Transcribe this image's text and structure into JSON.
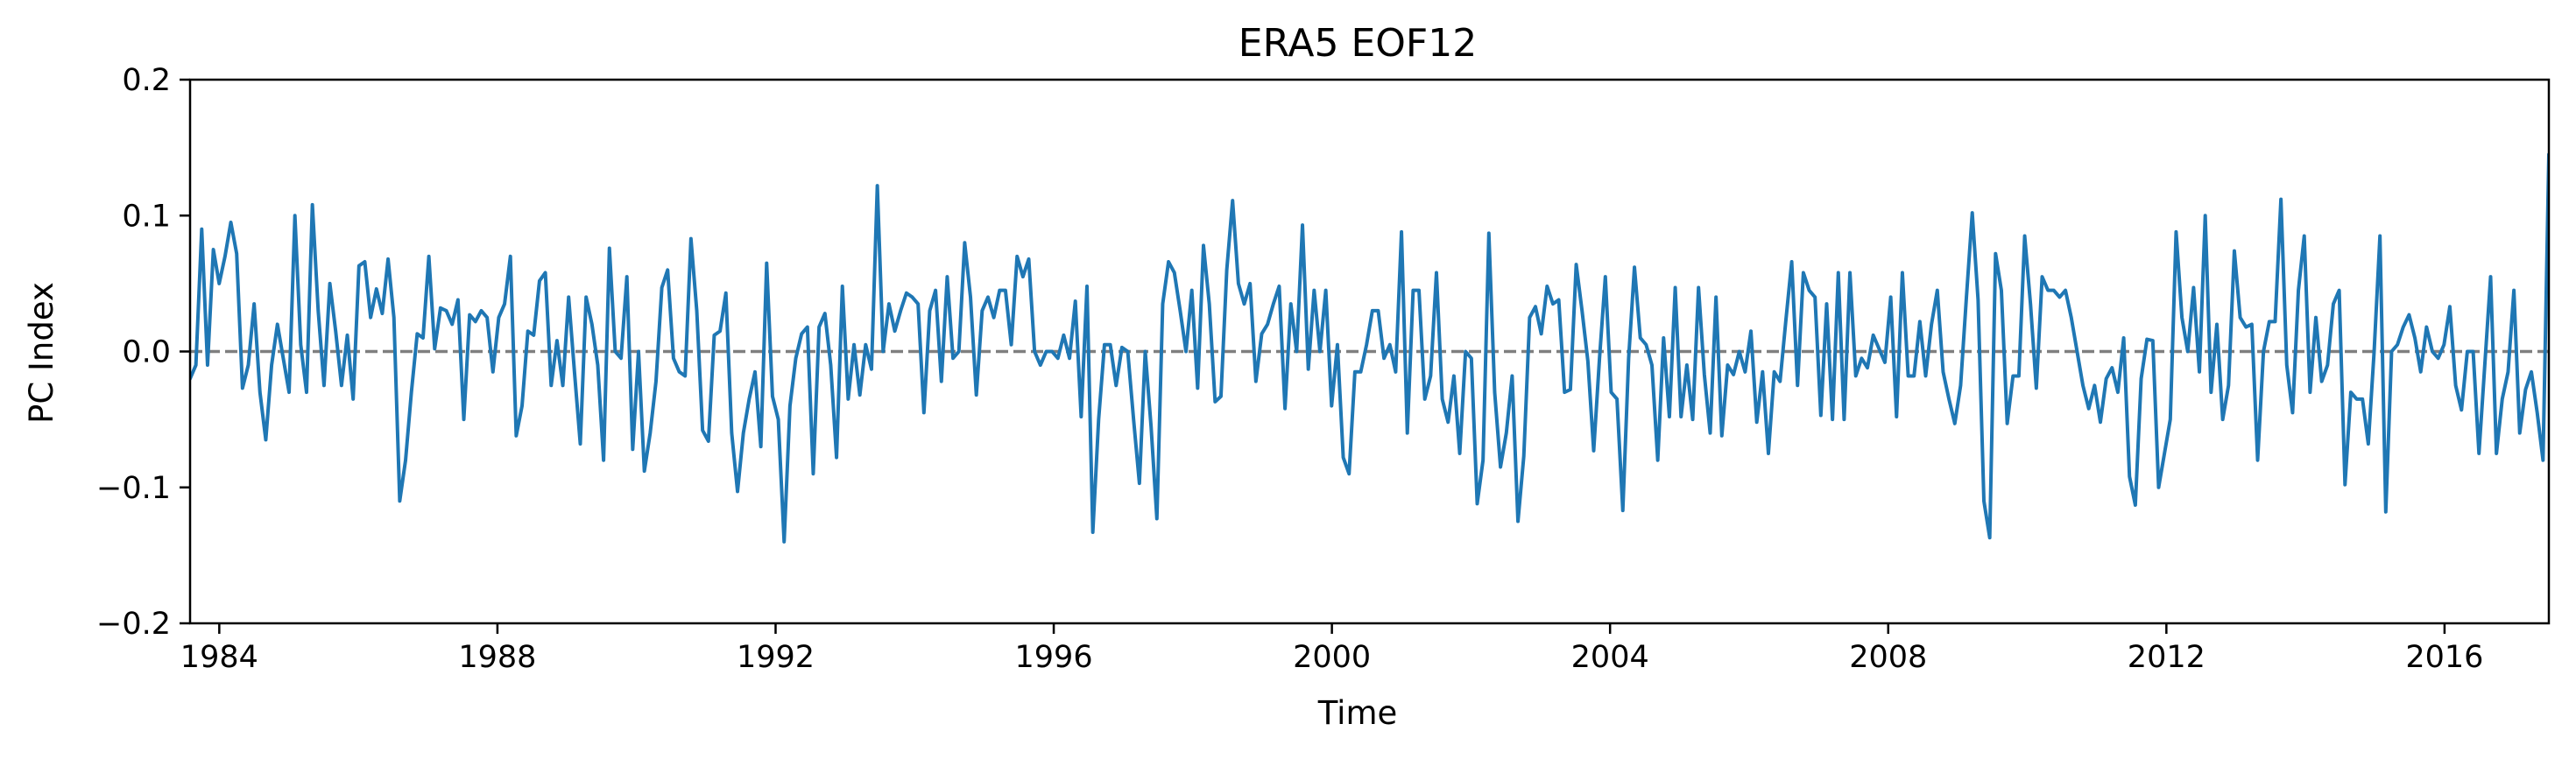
{
  "chart_data": {
    "type": "line",
    "title": "ERA5  EOF12",
    "xlabel": "Time",
    "ylabel": "PC Index",
    "xlim": [
      1983.58,
      2017.5
    ],
    "ylim": [
      -0.2,
      0.2
    ],
    "x_ticks": [
      1984,
      1988,
      1992,
      1996,
      2000,
      2004,
      2008,
      2012,
      2016
    ],
    "y_ticks": [
      -0.2,
      -0.1,
      0.0,
      0.1,
      0.2
    ],
    "x_tick_labels": [
      "1984",
      "1988",
      "1992",
      "1996",
      "2000",
      "2004",
      "2008",
      "2012",
      "2016"
    ],
    "y_tick_labels": [
      "−0.2",
      "−0.1",
      "0.0",
      "0.1",
      "0.2"
    ],
    "reference_line": {
      "y": 0.0,
      "style": "dashed",
      "color": "#7f7f7f"
    },
    "grid": false,
    "series": [
      {
        "color": "#1f77b4",
        "start": 1983.58,
        "step_years": 0.0833333,
        "values": [
          -0.02,
          -0.01,
          0.09,
          -0.01,
          0.075,
          0.05,
          0.07,
          0.095,
          0.072,
          -0.027,
          -0.01,
          0.035,
          -0.03,
          -0.065,
          -0.01,
          0.02,
          -0.005,
          -0.03,
          0.1,
          0.005,
          -0.03,
          0.108,
          0.03,
          -0.025,
          0.05,
          0.015,
          -0.025,
          0.012,
          -0.035,
          0.063,
          0.066,
          0.025,
          0.046,
          0.028,
          0.068,
          0.025,
          -0.11,
          -0.08,
          -0.03,
          0.013,
          0.01,
          0.07,
          0.002,
          0.032,
          0.03,
          0.02,
          0.038,
          -0.05,
          0.027,
          0.022,
          0.03,
          0.025,
          -0.015,
          0.025,
          0.035,
          0.07,
          -0.062,
          -0.04,
          0.015,
          0.012,
          0.052,
          0.058,
          -0.025,
          0.008,
          -0.025,
          0.04,
          -0.015,
          -0.068,
          0.04,
          0.02,
          -0.01,
          -0.08,
          0.076,
          0.0,
          -0.005,
          0.055,
          -0.072,
          0.0,
          -0.088,
          -0.06,
          -0.022,
          0.047,
          0.06,
          -0.005,
          -0.015,
          -0.018,
          0.083,
          0.03,
          -0.058,
          -0.066,
          0.012,
          0.015,
          0.043,
          -0.06,
          -0.103,
          -0.06,
          -0.035,
          -0.015,
          -0.07,
          0.065,
          -0.033,
          -0.05,
          -0.14,
          -0.04,
          -0.005,
          0.013,
          0.018,
          -0.09,
          0.018,
          0.028,
          -0.01,
          -0.078,
          0.048,
          -0.035,
          0.005,
          -0.032,
          0.005,
          -0.013,
          0.122,
          0.0,
          0.035,
          0.015,
          0.03,
          0.043,
          0.04,
          0.035,
          -0.045,
          0.03,
          0.045,
          -0.022,
          0.055,
          -0.005,
          0.0,
          0.08,
          0.04,
          -0.032,
          0.03,
          0.04,
          0.025,
          0.045,
          0.045,
          0.005,
          0.07,
          0.055,
          0.068,
          0.0,
          -0.01,
          0.0,
          0.0,
          -0.005,
          0.012,
          -0.005,
          0.037,
          -0.048,
          0.048,
          -0.133,
          -0.05,
          0.005,
          0.005,
          -0.025,
          0.003,
          0.0,
          -0.05,
          -0.097,
          0.0,
          -0.055,
          -0.123,
          0.035,
          0.066,
          0.058,
          0.03,
          0.0,
          0.045,
          -0.027,
          0.078,
          0.035,
          -0.037,
          -0.033,
          0.06,
          0.111,
          0.05,
          0.035,
          0.05,
          -0.022,
          0.013,
          0.02,
          0.035,
          0.048,
          -0.042,
          0.035,
          0.0,
          0.093,
          -0.013,
          0.045,
          0.0,
          0.045,
          -0.04,
          0.005,
          -0.078,
          -0.09,
          -0.015,
          -0.015,
          0.005,
          0.03,
          0.03,
          -0.005,
          0.005,
          -0.015,
          0.088,
          -0.06,
          0.045,
          0.045,
          -0.035,
          -0.018,
          0.058,
          -0.035,
          -0.052,
          -0.018,
          -0.075,
          0.0,
          -0.005,
          -0.112,
          -0.08,
          0.087,
          -0.03,
          -0.085,
          -0.06,
          -0.018,
          -0.125,
          -0.077,
          0.025,
          0.033,
          0.013,
          0.048,
          0.035,
          0.038,
          -0.03,
          -0.028,
          0.064,
          0.03,
          -0.007,
          -0.073,
          -0.005,
          0.055,
          -0.03,
          -0.035,
          -0.117,
          -0.005,
          0.062,
          0.01,
          0.005,
          -0.01,
          -0.08,
          0.01,
          -0.048,
          0.047,
          -0.048,
          -0.01,
          -0.05,
          0.047,
          -0.017,
          -0.06,
          0.04,
          -0.062,
          -0.01,
          -0.017,
          0.0,
          -0.015,
          0.015,
          -0.052,
          -0.015,
          -0.075,
          -0.015,
          -0.022,
          0.023,
          0.066,
          -0.025,
          0.058,
          0.045,
          0.04,
          -0.047,
          0.035,
          -0.05,
          0.058,
          -0.05,
          0.058,
          -0.018,
          -0.005,
          -0.012,
          0.012,
          0.002,
          -0.008,
          0.04,
          -0.048,
          0.058,
          -0.018,
          -0.018,
          0.022,
          -0.018,
          0.02,
          0.045,
          -0.015,
          -0.035,
          -0.053,
          -0.025,
          0.04,
          0.102,
          0.038,
          -0.11,
          -0.137,
          0.072,
          0.045,
          -0.053,
          -0.018,
          -0.018,
          0.085,
          0.035,
          -0.027,
          0.055,
          0.045,
          0.045,
          0.04,
          0.045,
          0.025,
          0.0,
          -0.025,
          -0.042,
          -0.025,
          -0.052,
          -0.02,
          -0.012,
          -0.03,
          0.01,
          -0.092,
          -0.113,
          -0.02,
          0.009,
          0.008,
          -0.1,
          -0.075,
          -0.05,
          0.088,
          0.025,
          0.0,
          0.047,
          -0.015,
          0.1,
          -0.03,
          0.02,
          -0.05,
          -0.025,
          0.074,
          0.025,
          0.018,
          0.02,
          -0.08,
          0.0,
          0.022,
          0.022,
          0.112,
          -0.01,
          -0.045,
          0.045,
          0.085,
          -0.03,
          0.025,
          -0.022,
          -0.01,
          0.035,
          0.045,
          -0.098,
          -0.03,
          -0.035,
          -0.035,
          -0.068,
          0.0,
          0.085,
          -0.118,
          0.0,
          0.005,
          0.018,
          0.027,
          0.01,
          -0.015,
          0.018,
          0.0,
          -0.005,
          0.005,
          0.033,
          -0.025,
          -0.043,
          0.0,
          0.0,
          -0.075,
          -0.01,
          0.055,
          -0.075,
          -0.035,
          -0.015,
          0.045,
          -0.06,
          -0.028,
          -0.015,
          -0.045,
          -0.08,
          0.145
        ]
      }
    ]
  }
}
